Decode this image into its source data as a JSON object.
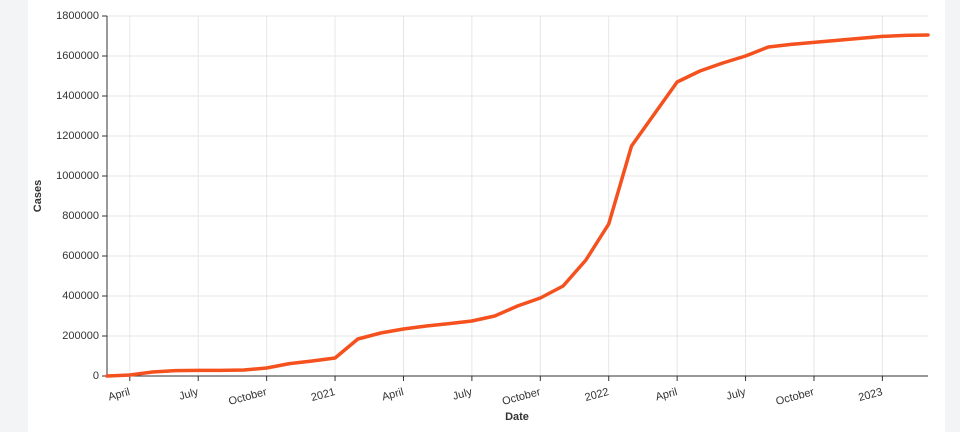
{
  "chart_data": {
    "type": "line",
    "x_label": "Date",
    "y_label": "Cases",
    "x": [
      "2020-03",
      "2020-04",
      "2020-05",
      "2020-06",
      "2020-07",
      "2020-08",
      "2020-09",
      "2020-10",
      "2020-11",
      "2020-12",
      "2021-01",
      "2021-02",
      "2021-03",
      "2021-04",
      "2021-05",
      "2021-06",
      "2021-07",
      "2021-08",
      "2021-09",
      "2021-10",
      "2021-11",
      "2021-12",
      "2022-01",
      "2022-02",
      "2022-03",
      "2022-04",
      "2022-05",
      "2022-06",
      "2022-07",
      "2022-08",
      "2022-09",
      "2022-10",
      "2022-11",
      "2022-12",
      "2023-01",
      "2023-02",
      "2023-03"
    ],
    "series": [
      {
        "name": "Cases",
        "color": "#f4511e",
        "values": [
          0,
          5000,
          20000,
          27000,
          28000,
          28000,
          30000,
          40000,
          62000,
          75000,
          90000,
          185000,
          215000,
          235000,
          250000,
          262000,
          275000,
          300000,
          350000,
          390000,
          450000,
          580000,
          760000,
          1150000,
          1310000,
          1470000,
          1525000,
          1565000,
          1600000,
          1645000,
          1658000,
          1668000,
          1678000,
          1688000,
          1698000,
          1703000,
          1705000
        ]
      }
    ],
    "xlim": [
      "2020-03",
      "2023-03"
    ],
    "xticks": [
      {
        "value": "2020-04",
        "label": "April"
      },
      {
        "value": "2020-07",
        "label": "July"
      },
      {
        "value": "2020-10",
        "label": "October"
      },
      {
        "value": "2021-01",
        "label": "2021"
      },
      {
        "value": "2021-04",
        "label": "April"
      },
      {
        "value": "2021-07",
        "label": "July"
      },
      {
        "value": "2021-10",
        "label": "October"
      },
      {
        "value": "2022-01",
        "label": "2022"
      },
      {
        "value": "2022-04",
        "label": "April"
      },
      {
        "value": "2022-07",
        "label": "July"
      },
      {
        "value": "2022-10",
        "label": "October"
      },
      {
        "value": "2023-01",
        "label": "2023"
      }
    ],
    "ylim": [
      0,
      1800000
    ],
    "yticks": [
      0,
      200000,
      400000,
      600000,
      800000,
      1000000,
      1200000,
      1400000,
      1600000,
      1800000
    ],
    "grid": true
  }
}
